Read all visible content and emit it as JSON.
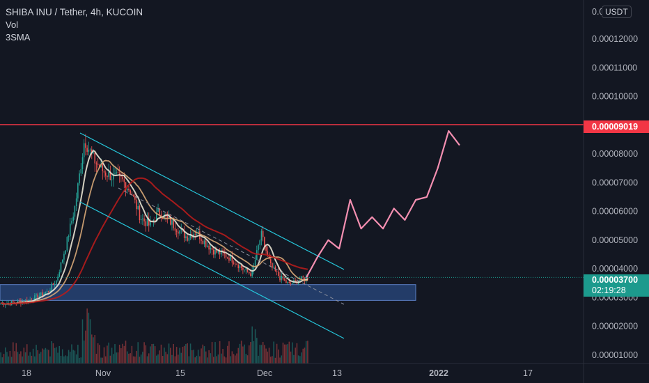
{
  "legend": {
    "title": "SHIBA INU / Tether, 4h, KUCOIN",
    "vol": "Vol",
    "sma": "3SMA"
  },
  "currency": "USDT",
  "price_axis": {
    "ticks": [
      "0.00012000",
      "0.00011000",
      "0.00010000",
      "0.00008000",
      "0.00007000",
      "0.00006000",
      "0.00005000",
      "0.00004000",
      "0.00003000",
      "0.00002000",
      "0.00001000"
    ],
    "top_tick_partial": "0.0",
    "level_label": "0.00009019",
    "last_price_label": "0.00003700",
    "countdown": "02:19:28"
  },
  "time_axis": {
    "ticks": [
      "18",
      "Nov",
      "15",
      "Dec",
      "13",
      "2022",
      "17"
    ]
  },
  "colors": {
    "background": "#131722",
    "level_line": "#f23645",
    "channel": "#26c6da",
    "zone_fill": "#2a4a80",
    "projection": "#f48fb1",
    "sma_short": "#e9e3d3",
    "sma_mid": "#d8a878",
    "sma_long": "#b71c1c",
    "last_price": "#1c9a8d"
  },
  "chart_data": {
    "type": "candlestick",
    "title": "SHIBA INU / Tether, 4h, KUCOIN",
    "y_unit": "USDT",
    "ylim": [
      7.5e-06,
      0.00013
    ],
    "x_ticks": [
      "18",
      "Nov",
      "15",
      "Dec",
      "13",
      "2022",
      "17"
    ],
    "grid": false,
    "horizontal_level": 9.019e-05,
    "last_price": 3.7e-05,
    "support_zone": [
      2.9e-05,
      3.45e-05
    ],
    "price_path_close": [
      2.8e-05,
      2.8e-05,
      2.85e-05,
      2.9e-05,
      3.05e-05,
      3.2e-05,
      3.6e-05,
      4.8e-05,
      6.2e-05,
      8.5e-05,
      7.8e-05,
      7.4e-05,
      7.2e-05,
      7.1e-05,
      6.7e-05,
      5.8e-05,
      5.5e-05,
      6e-05,
      5.7e-05,
      5.4e-05,
      5.1e-05,
      5.3e-05,
      4.9e-05,
      4.6e-05,
      4.5e-05,
      4.3e-05,
      4e-05,
      3.8e-05,
      5.2e-05,
      4.1e-05,
      3.7e-05,
      3.45e-05,
      3.6e-05,
      3.7e-05
    ],
    "projection_path": [
      3.7e-05,
      4.4e-05,
      5e-05,
      4.7e-05,
      6.4e-05,
      5.4e-05,
      5.8e-05,
      5.4e-05,
      6.1e-05,
      5.7e-05,
      6.4e-05,
      6.5e-05,
      7.5e-05,
      8.8e-05,
      8.3e-05
    ]
  }
}
